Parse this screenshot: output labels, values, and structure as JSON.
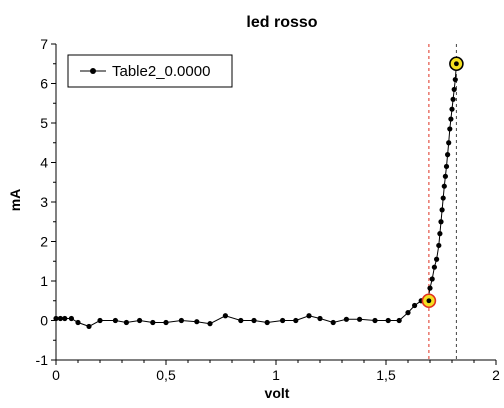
{
  "chart_data": {
    "type": "scatter",
    "title": "led rosso",
    "xlabel": "volt",
    "ylabel": "mA",
    "xlim": [
      0,
      2
    ],
    "ylim": [
      -1,
      7
    ],
    "x_ticks": [
      0,
      0.5,
      1,
      1.5,
      2
    ],
    "x_tick_labels": [
      "0",
      "0,5",
      "1",
      "1,5",
      "2"
    ],
    "y_ticks": [
      -1,
      0,
      1,
      2,
      3,
      4,
      5,
      6,
      7
    ],
    "y_tick_labels": [
      "-1",
      "0",
      "1",
      "2",
      "3",
      "4",
      "5",
      "6",
      "7"
    ],
    "grid": false,
    "legend": "top-left",
    "series": [
      {
        "name": "Table2_0.0000",
        "color": "#000000",
        "x": [
          0.0,
          0.02,
          0.04,
          0.07,
          0.1,
          0.15,
          0.2,
          0.27,
          0.32,
          0.38,
          0.44,
          0.5,
          0.57,
          0.64,
          0.7,
          0.77,
          0.84,
          0.9,
          0.96,
          1.03,
          1.09,
          1.15,
          1.2,
          1.26,
          1.32,
          1.38,
          1.45,
          1.51,
          1.56,
          1.6,
          1.63,
          1.66,
          1.69,
          1.7,
          1.71,
          1.72,
          1.73,
          1.74,
          1.745,
          1.75,
          1.755,
          1.76,
          1.765,
          1.77,
          1.775,
          1.78,
          1.785,
          1.79,
          1.795,
          1.8,
          1.805,
          1.81,
          1.815,
          1.82
        ],
        "y": [
          0.05,
          0.05,
          0.05,
          0.05,
          -0.05,
          -0.15,
          0.0,
          0.0,
          -0.05,
          0.0,
          -0.05,
          -0.05,
          0.0,
          -0.03,
          -0.08,
          0.12,
          0.0,
          0.0,
          -0.05,
          0.0,
          0.0,
          0.12,
          0.05,
          -0.05,
          0.03,
          0.03,
          0.0,
          0.0,
          0.0,
          0.2,
          0.38,
          0.5,
          0.5,
          0.82,
          1.05,
          1.35,
          1.55,
          1.9,
          2.2,
          2.5,
          2.8,
          3.1,
          3.4,
          3.65,
          3.9,
          4.2,
          4.5,
          4.85,
          5.1,
          5.35,
          5.6,
          5.85,
          6.1,
          6.5
        ]
      }
    ],
    "markers": [
      {
        "x": 1.695,
        "y": 0.5,
        "ring_color": "#e03020",
        "fill": "#f4e020"
      },
      {
        "x": 1.82,
        "y": 6.5,
        "ring_color": "#000000",
        "fill": "#f4e020"
      }
    ],
    "vlines": [
      {
        "x": 1.695,
        "color": "#e03020"
      },
      {
        "x": 1.82,
        "color": "#444444"
      }
    ]
  }
}
